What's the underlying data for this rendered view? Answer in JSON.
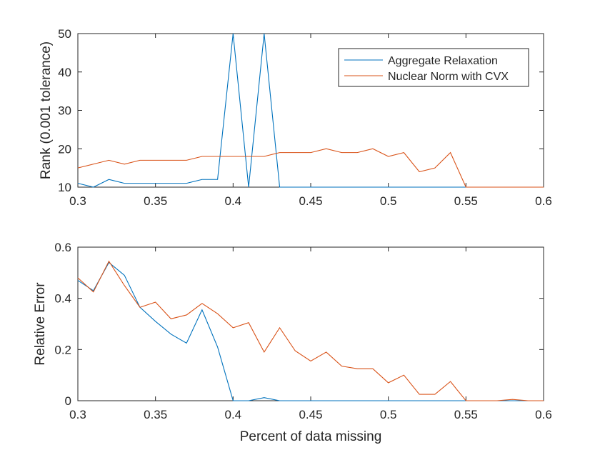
{
  "chart_data": [
    {
      "type": "line",
      "xlabel": "",
      "ylabel": "Rank (0.001 tolerance)",
      "xlim": [
        0.3,
        0.6
      ],
      "ylim": [
        10,
        50
      ],
      "xticks": [
        "0.3",
        "0.35",
        "0.4",
        "0.45",
        "0.5",
        "0.55",
        "0.6"
      ],
      "yticks": [
        "10",
        "20",
        "30",
        "40",
        "50"
      ],
      "legend": "top-right",
      "x": [
        0.3,
        0.31,
        0.32,
        0.33,
        0.34,
        0.35,
        0.36,
        0.37,
        0.38,
        0.39,
        0.4,
        0.41,
        0.42,
        0.43,
        0.44,
        0.45,
        0.46,
        0.47,
        0.48,
        0.49,
        0.5,
        0.51,
        0.52,
        0.53,
        0.54,
        0.55,
        0.56,
        0.57,
        0.58,
        0.59,
        0.6
      ],
      "series": [
        {
          "name": "Aggregate Relaxation",
          "color": "#0072BD",
          "values": [
            11,
            10,
            12,
            11,
            11,
            11,
            11,
            11,
            12,
            12,
            50,
            10,
            50,
            10,
            10,
            10,
            10,
            10,
            10,
            10,
            10,
            10,
            10,
            10,
            10,
            10,
            10,
            10,
            10,
            10,
            10
          ]
        },
        {
          "name": "Nuclear Norm with CVX",
          "color": "#D95319",
          "values": [
            15,
            16,
            17,
            16,
            17,
            17,
            17,
            17,
            18,
            18,
            18,
            18,
            18,
            19,
            19,
            19,
            20,
            19,
            19,
            20,
            18,
            19,
            14,
            15,
            19,
            10,
            10,
            10,
            10,
            10,
            10
          ]
        }
      ]
    },
    {
      "type": "line",
      "xlabel": "Percent of data missing",
      "ylabel": "Relative Error",
      "xlim": [
        0.3,
        0.6
      ],
      "ylim": [
        0,
        0.6
      ],
      "xticks": [
        "0.3",
        "0.35",
        "0.4",
        "0.45",
        "0.5",
        "0.55",
        "0.6"
      ],
      "yticks": [
        "0",
        "0.2",
        "0.4",
        "0.6"
      ],
      "x": [
        0.3,
        0.31,
        0.32,
        0.33,
        0.34,
        0.35,
        0.36,
        0.37,
        0.38,
        0.39,
        0.4,
        0.41,
        0.42,
        0.43,
        0.44,
        0.45,
        0.46,
        0.47,
        0.48,
        0.49,
        0.5,
        0.51,
        0.52,
        0.53,
        0.54,
        0.55,
        0.56,
        0.57,
        0.58,
        0.59,
        0.6
      ],
      "series": [
        {
          "name": "Aggregate Relaxation",
          "color": "#0072BD",
          "values": [
            0.47,
            0.43,
            0.54,
            0.49,
            0.365,
            0.31,
            0.26,
            0.225,
            0.355,
            0.21,
            0.0,
            0.0,
            0.012,
            0.0,
            0.0,
            0.0,
            0.0,
            0.0,
            0.0,
            0.0,
            0.0,
            0.0,
            0.0,
            0.0,
            0.0,
            0.0,
            0.0,
            0.0,
            0.0,
            0.0,
            0.0
          ]
        },
        {
          "name": "Nuclear Norm with CVX",
          "color": "#D95319",
          "values": [
            0.48,
            0.425,
            0.545,
            0.45,
            0.365,
            0.385,
            0.32,
            0.335,
            0.38,
            0.34,
            0.285,
            0.305,
            0.19,
            0.285,
            0.195,
            0.155,
            0.19,
            0.135,
            0.125,
            0.125,
            0.07,
            0.1,
            0.025,
            0.025,
            0.075,
            0.0,
            0.0,
            0.0,
            0.005,
            0.0,
            0.0
          ]
        }
      ]
    }
  ]
}
